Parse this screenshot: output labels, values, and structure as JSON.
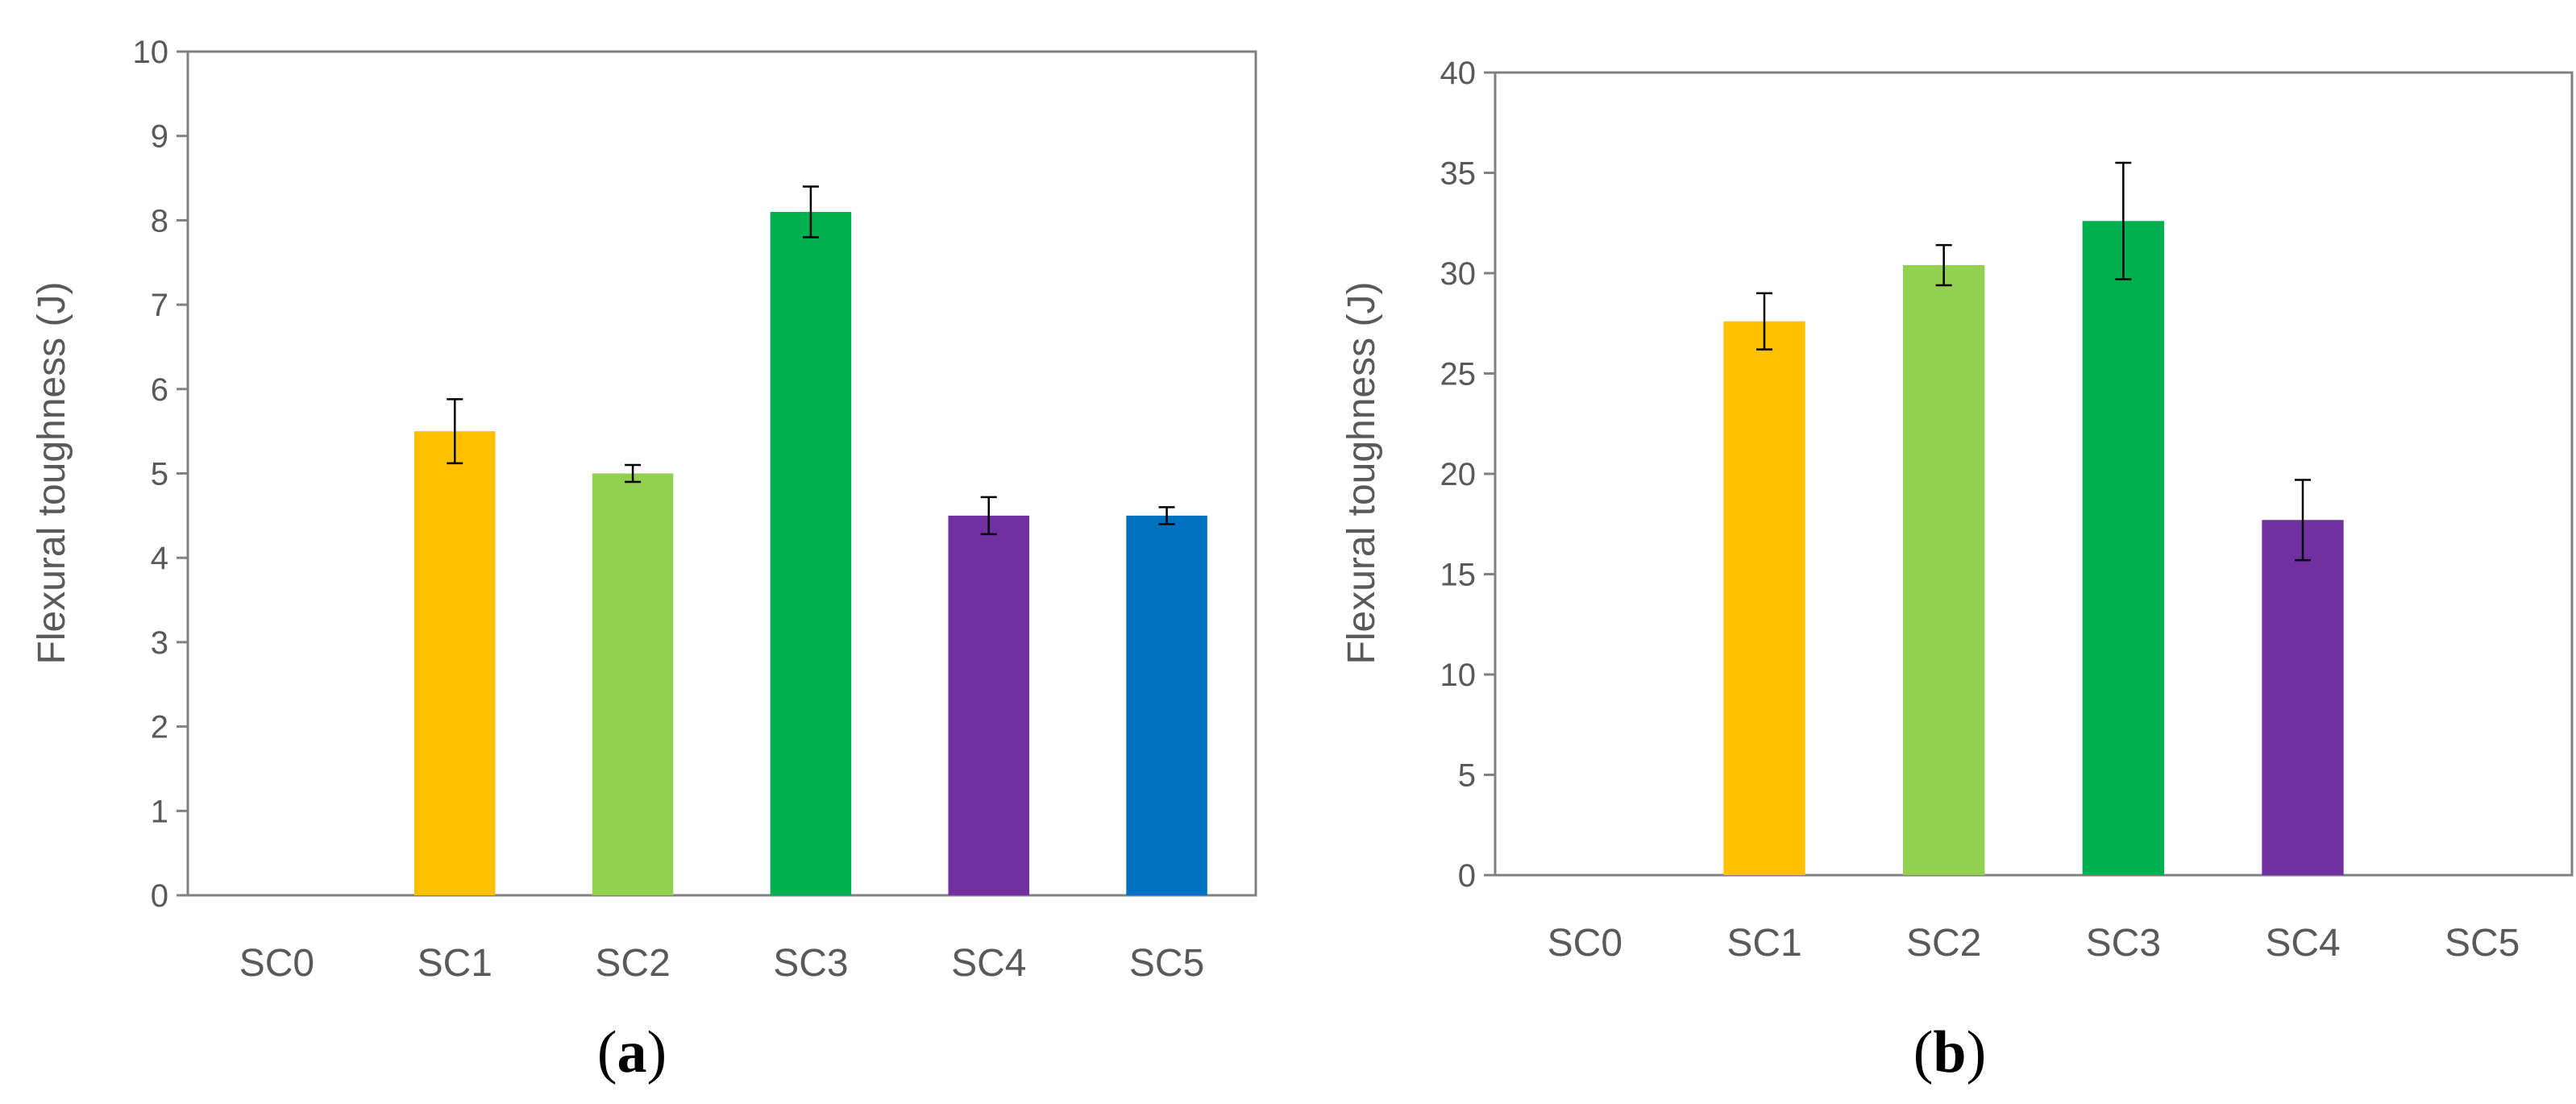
{
  "colors": {
    "SC1": "#FFC000",
    "SC2": "#92D050",
    "SC3": "#00B050",
    "SC4": "#7030A0",
    "SC5": "#0070C0",
    "axis": "#808080",
    "text": "#595959"
  },
  "chart_data": [
    {
      "type": "bar",
      "panel_open": "(",
      "panel_letter": "a",
      "panel_close": ")",
      "title": "",
      "xlabel": "",
      "ylabel": "Flexural toughness (J)",
      "ylim": [
        0,
        10
      ],
      "yticks": [
        0,
        1,
        2,
        3,
        4,
        5,
        6,
        7,
        8,
        9,
        10
      ],
      "grid": false,
      "categories": [
        "SC0",
        "SC1",
        "SC2",
        "SC3",
        "SC4",
        "SC5"
      ],
      "values": [
        0,
        5.5,
        5.0,
        8.1,
        4.5,
        4.5
      ],
      "errors": [
        0,
        0.38,
        0.1,
        0.3,
        0.22,
        0.1
      ]
    },
    {
      "type": "bar",
      "panel_open": "(",
      "panel_letter": "b",
      "panel_close": ")",
      "title": "",
      "xlabel": "",
      "ylabel": "Flexural toughness (J)",
      "ylim": [
        0,
        40
      ],
      "yticks": [
        0,
        5,
        10,
        15,
        20,
        25,
        30,
        35,
        40
      ],
      "grid": false,
      "categories": [
        "SC0",
        "SC1",
        "SC2",
        "SC3",
        "SC4",
        "SC5"
      ],
      "values": [
        0,
        27.6,
        30.4,
        32.6,
        17.7,
        0
      ],
      "errors": [
        0,
        1.4,
        1.0,
        2.9,
        2.0,
        0
      ]
    }
  ]
}
